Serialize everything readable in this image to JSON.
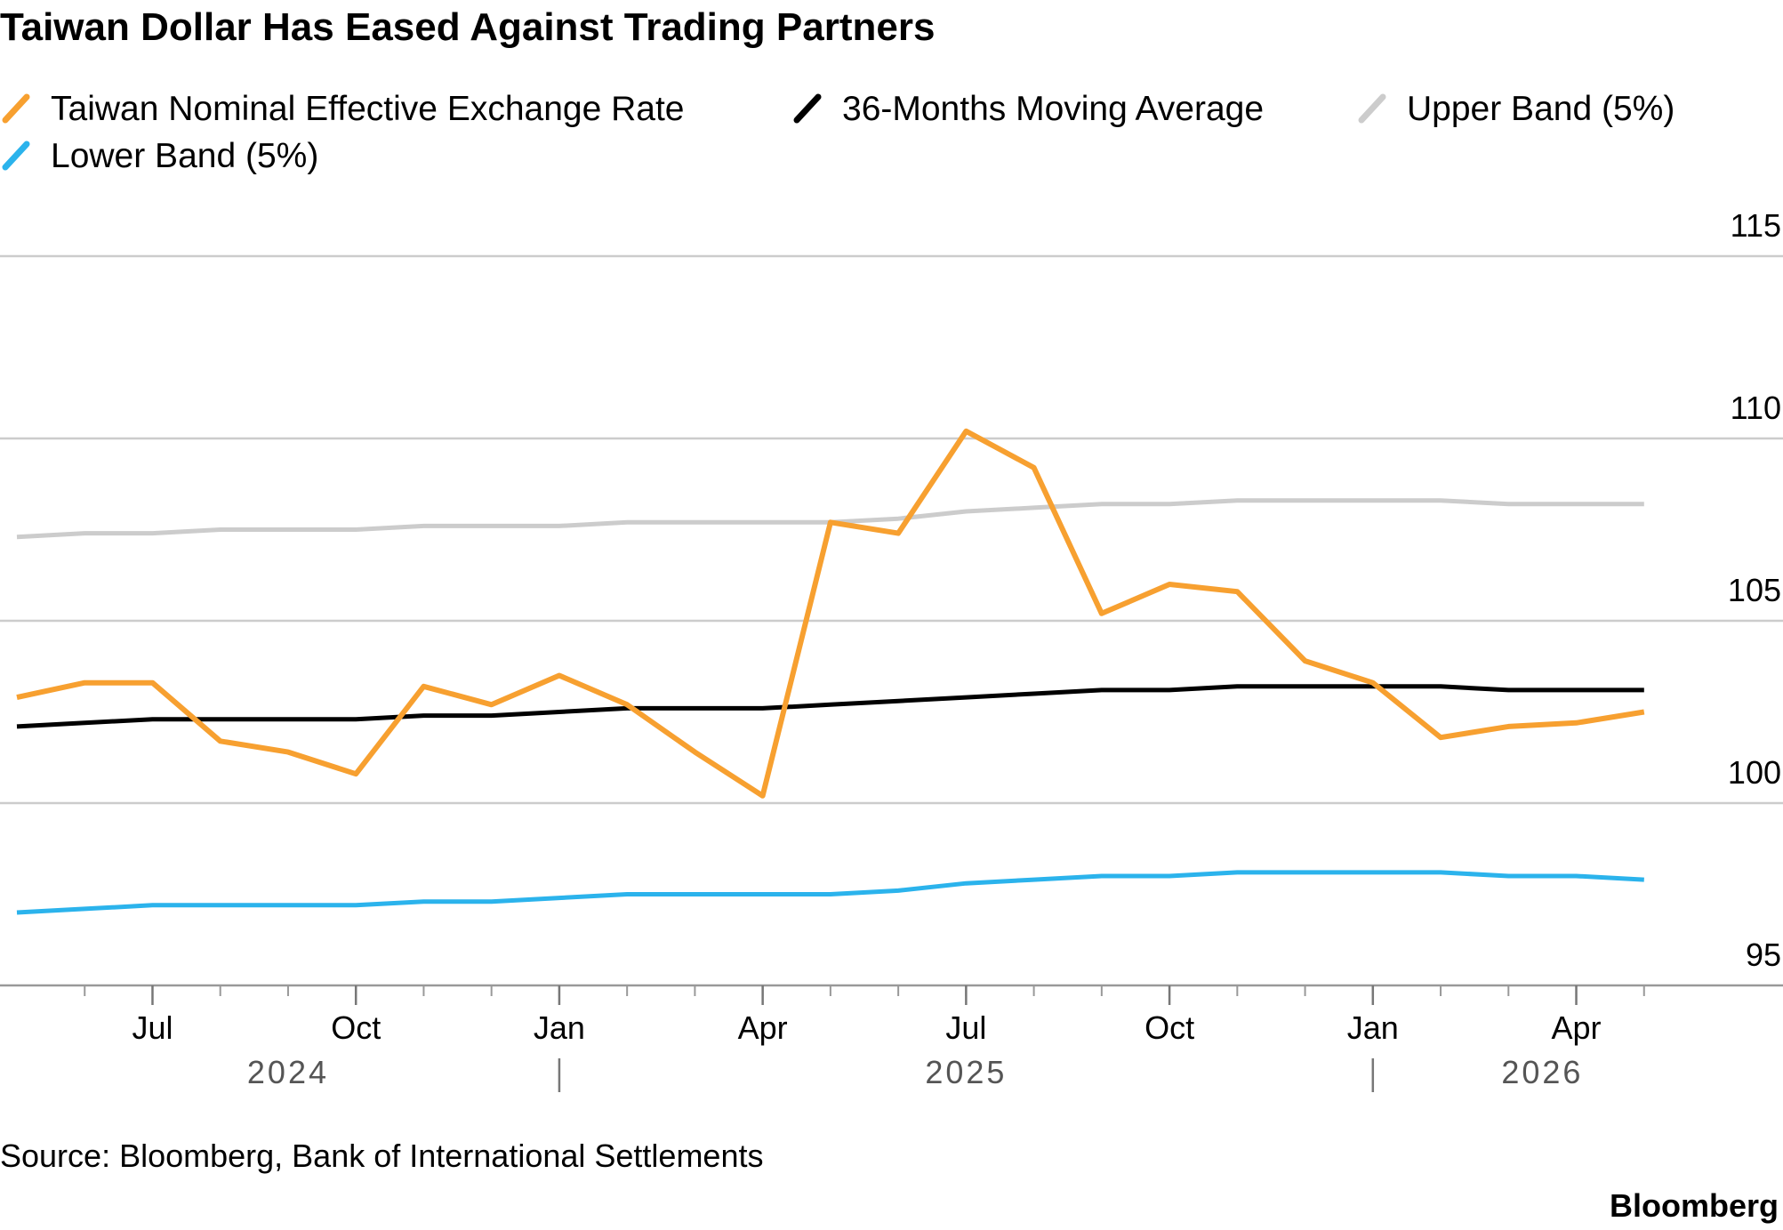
{
  "chart_data": {
    "type": "line",
    "title": "Taiwan Dollar Has Eased Against Trading Partners",
    "source": "Source: Bloomberg, Bank of International Settlements",
    "brand": "Bloomberg",
    "x": [
      "2024-05",
      "2024-06",
      "2024-07",
      "2024-08",
      "2024-09",
      "2024-10",
      "2024-11",
      "2024-12",
      "2025-01",
      "2025-02",
      "2025-03",
      "2025-04",
      "2025-05",
      "2025-06",
      "2025-07",
      "2025-08",
      "2025-09",
      "2025-10",
      "2025-11",
      "2025-12",
      "2026-01",
      "2026-02",
      "2026-03",
      "2026-04",
      "2026-05"
    ],
    "series": [
      {
        "name": "Taiwan Nominal Effective Exchange Rate",
        "color": "#f7a030",
        "values": [
          102.9,
          103.3,
          103.3,
          101.7,
          101.4,
          100.8,
          103.2,
          102.7,
          103.5,
          102.7,
          101.4,
          100.2,
          107.7,
          107.4,
          110.2,
          109.2,
          105.2,
          106.0,
          105.8,
          103.9,
          103.3,
          101.8,
          102.1,
          102.2,
          102.5
        ]
      },
      {
        "name": "36-Months Moving Average",
        "color": "#000000",
        "values": [
          102.1,
          102.2,
          102.3,
          102.3,
          102.3,
          102.3,
          102.4,
          102.4,
          102.5,
          102.6,
          102.6,
          102.6,
          102.7,
          102.8,
          102.9,
          103.0,
          103.1,
          103.1,
          103.2,
          103.2,
          103.2,
          103.2,
          103.1,
          103.1,
          103.1
        ]
      },
      {
        "name": "Upper Band (5%)",
        "color": "#cccccc",
        "values": [
          107.3,
          107.4,
          107.4,
          107.5,
          107.5,
          107.5,
          107.6,
          107.6,
          107.6,
          107.7,
          107.7,
          107.7,
          107.7,
          107.8,
          108.0,
          108.1,
          108.2,
          108.2,
          108.3,
          108.3,
          108.3,
          108.3,
          108.2,
          108.2,
          108.2
        ]
      },
      {
        "name": "Lower Band (5%)",
        "color": "#2bb3ec",
        "values": [
          97.0,
          97.1,
          97.2,
          97.2,
          97.2,
          97.2,
          97.3,
          97.3,
          97.4,
          97.5,
          97.5,
          97.5,
          97.5,
          97.6,
          97.8,
          97.9,
          98.0,
          98.0,
          98.1,
          98.1,
          98.1,
          98.1,
          98.0,
          98.0,
          97.9
        ]
      }
    ],
    "xlim": [
      "2024-05",
      "2026-06"
    ],
    "xticks": [
      {
        "value": "2024-07",
        "label": "Jul"
      },
      {
        "value": "2024-10",
        "label": "Oct"
      },
      {
        "value": "2025-01",
        "label": "Jan"
      },
      {
        "value": "2025-04",
        "label": "Apr"
      },
      {
        "value": "2025-07",
        "label": "Jul"
      },
      {
        "value": "2025-10",
        "label": "Oct"
      },
      {
        "value": "2026-01",
        "label": "Jan"
      },
      {
        "value": "2026-04",
        "label": "Apr"
      }
    ],
    "years": [
      2024,
      2025,
      2026
    ],
    "ylim": [
      95,
      115
    ],
    "yticks": [
      95,
      100,
      105,
      110,
      115
    ],
    "grid": true
  }
}
